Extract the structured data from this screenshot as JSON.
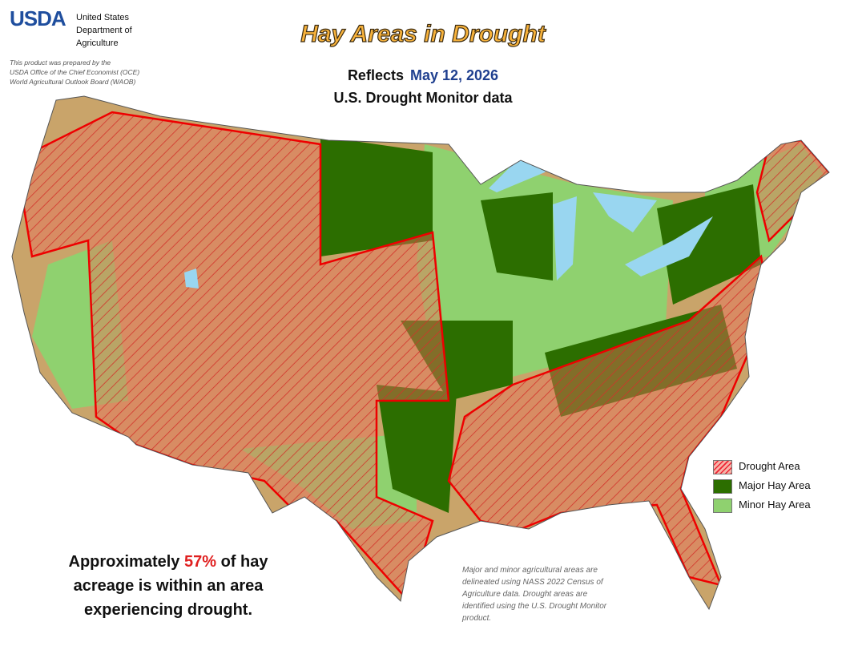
{
  "header": {
    "logo": "USDA",
    "agency": [
      "United States",
      "Department of",
      "Agriculture"
    ],
    "credit": [
      "This product was prepared by the",
      "USDA Office of the Chief Economist (OCE)",
      "World Agricultural Outlook Board (WAOB)"
    ]
  },
  "title": "Hay Areas in Drought",
  "subtitle": {
    "prefix": "Reflects",
    "date": "May 12, 2026",
    "source": "U.S. Drought Monitor data"
  },
  "legend": [
    "Drought Area",
    "Major Hay Area",
    "Minor Hay Area"
  ],
  "summary": {
    "before": "Approximately",
    "percent": "57%",
    "after": "of hay",
    "lines": [
      "acreage is within an area",
      "experiencing drought."
    ]
  },
  "footnote": [
    "Major and minor agricultural areas are",
    "delineated using NASS 2022 Census of",
    "Agriculture data.  Drought areas are",
    "identified using the U.S. Drought Monitor",
    "product."
  ]
}
